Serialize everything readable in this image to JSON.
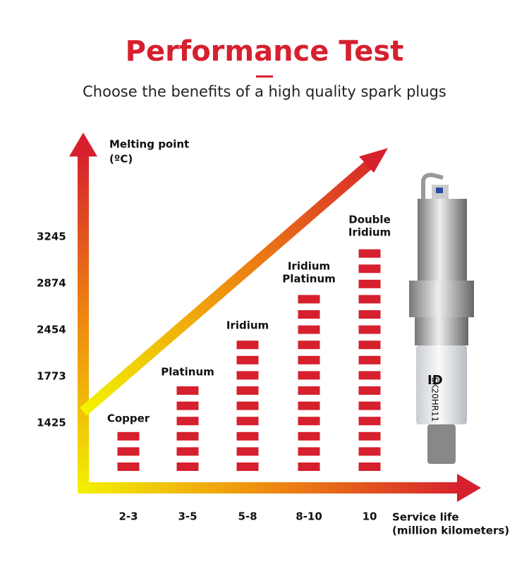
{
  "chart_data": {
    "type": "bar",
    "title": "Performance Test",
    "subtitle": "Choose the benefits of a high quality spark plugs",
    "y_label": [
      "Melting point",
      "(ºC)"
    ],
    "x_label": [
      "Service life",
      "(million kilometers)"
    ],
    "categories": [
      "2-3",
      "3-5",
      "5-8",
      "8-10",
      "10"
    ],
    "bar_labels": [
      [
        "Copper"
      ],
      [
        "Platinum"
      ],
      [
        "Iridium"
      ],
      [
        "Iridium",
        "Platinum"
      ],
      [
        "Double",
        "Iridium"
      ]
    ],
    "values": [
      1425,
      1773,
      2454,
      2874,
      3245
    ],
    "yticks": [
      1425,
      1773,
      2454,
      2874,
      3245
    ],
    "color": "#d6202e"
  }
}
